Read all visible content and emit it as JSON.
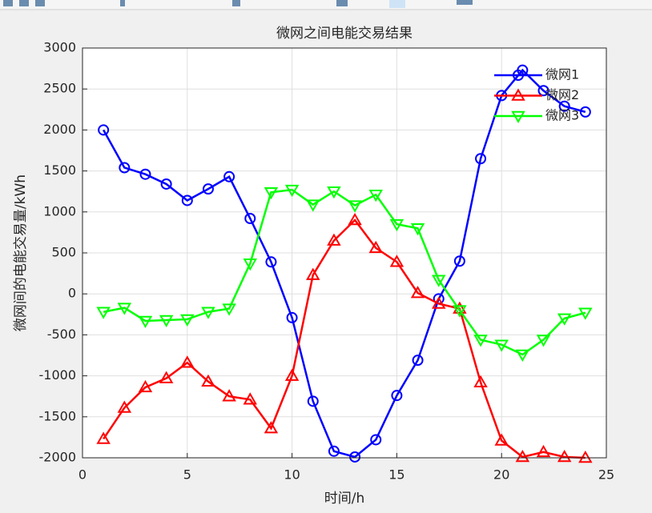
{
  "chart_data": {
    "type": "line",
    "title": "微网之间电能交易结果",
    "x_label": "时间/h",
    "y_label": "微网间的电能交易量/kWh",
    "x": [
      1,
      2,
      3,
      4,
      5,
      6,
      7,
      8,
      9,
      10,
      11,
      12,
      13,
      14,
      15,
      16,
      17,
      18,
      19,
      20,
      21,
      22,
      23,
      24
    ],
    "series": [
      {
        "name": "微网1",
        "color": "#0000ff",
        "marker": "circle",
        "values": [
          2000,
          1540,
          1460,
          1340,
          1140,
          1280,
          1430,
          920,
          390,
          -290,
          -1310,
          -1920,
          -1990,
          -1780,
          -1240,
          -810,
          -60,
          400,
          1650,
          2420,
          2730,
          2480,
          2290,
          2220
        ]
      },
      {
        "name": "微网2",
        "color": "#ff0000",
        "marker": "triangle-up",
        "values": [
          -1770,
          -1390,
          -1140,
          -1030,
          -840,
          -1070,
          -1250,
          -1290,
          -1640,
          -1000,
          230,
          650,
          900,
          560,
          390,
          10,
          -120,
          -180,
          -1080,
          -1790,
          -1990,
          -1930,
          -1990,
          -2000
        ]
      },
      {
        "name": "微网3",
        "color": "#00ff00",
        "marker": "triangle-down",
        "values": [
          -220,
          -170,
          -330,
          -320,
          -310,
          -220,
          -180,
          370,
          1240,
          1270,
          1090,
          1250,
          1080,
          1210,
          850,
          800,
          170,
          -200,
          -560,
          -620,
          -740,
          -560,
          -300,
          -230
        ]
      }
    ],
    "xlim": [
      0,
      25
    ],
    "xticks": [
      0,
      5,
      10,
      15,
      20,
      25
    ],
    "ylim": [
      -2000,
      3000
    ],
    "yticks": [
      -2000,
      -1500,
      -1000,
      -500,
      0,
      500,
      1000,
      1500,
      2000,
      2500,
      3000
    ],
    "grid": true,
    "legend_position": "northeast"
  }
}
